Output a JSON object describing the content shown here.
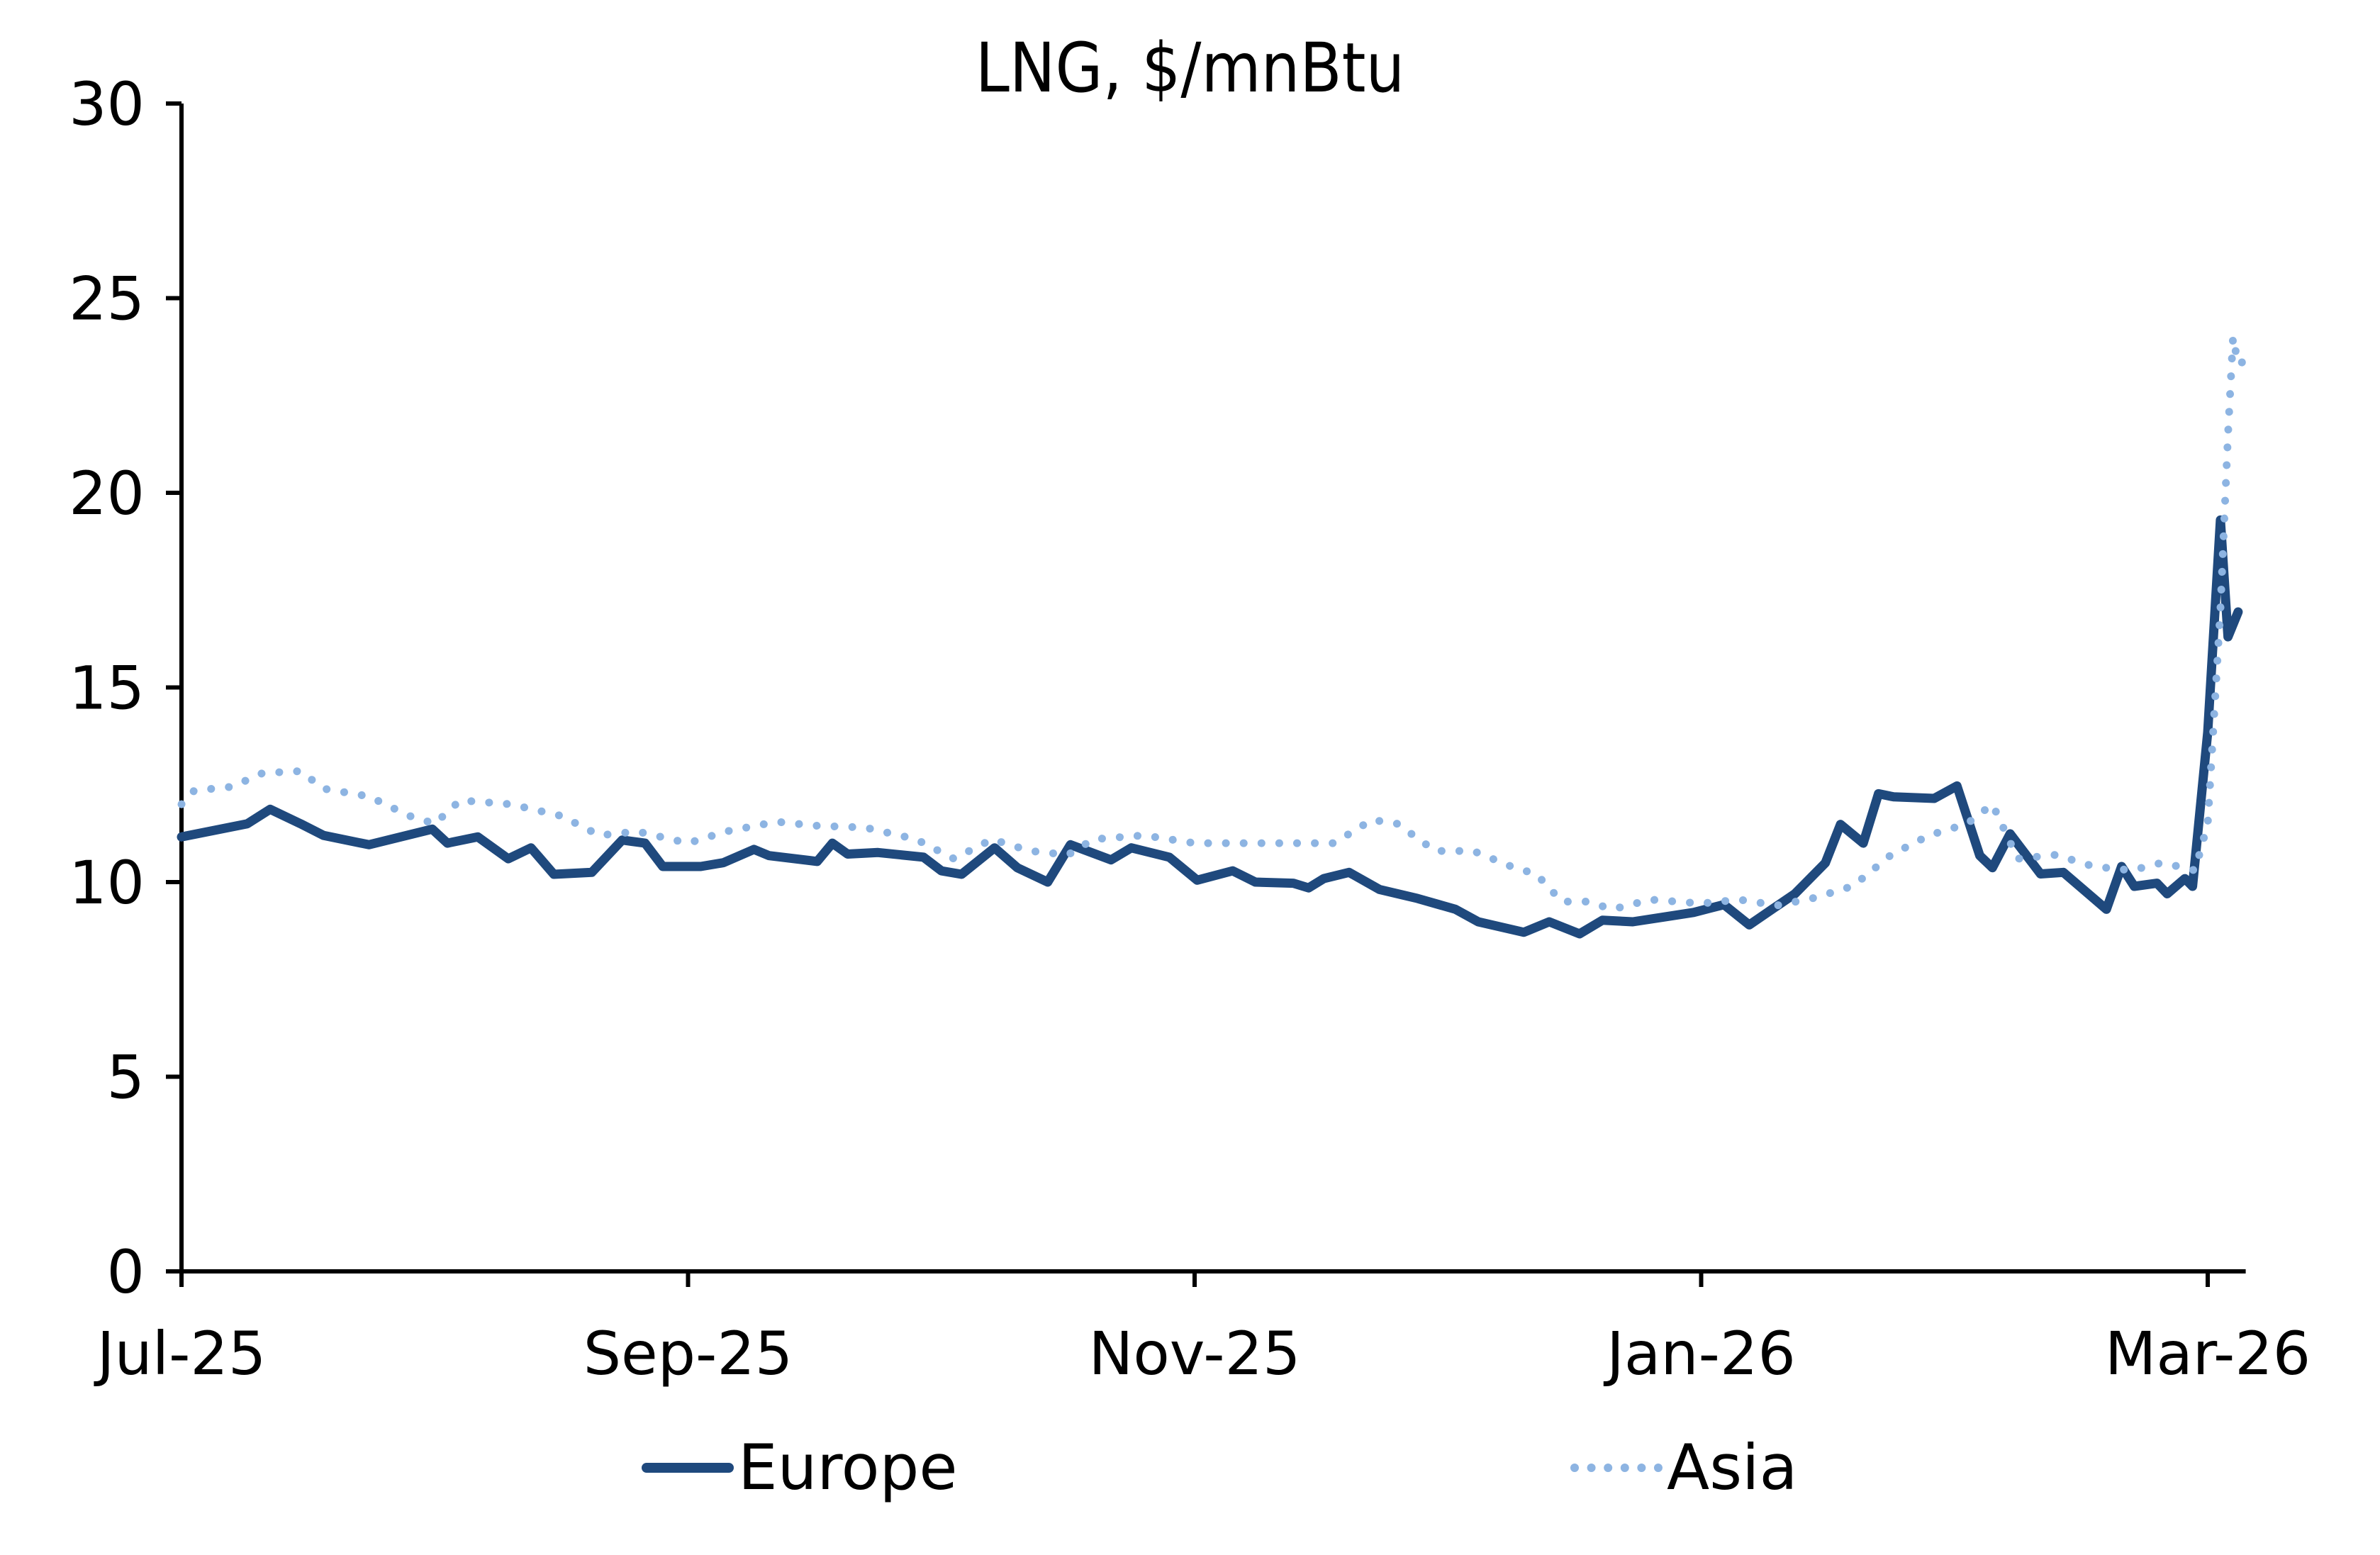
{
  "chart_data": {
    "type": "line",
    "title": "LNG, $/mnBtu",
    "xlabel": "",
    "ylabel": "",
    "ylim": [
      0,
      30
    ],
    "yticks": [
      0,
      5,
      10,
      15,
      20,
      25,
      30
    ],
    "xticks": [
      {
        "label": "Jul-25",
        "pos": 0
      },
      {
        "label": "Sep-25",
        "pos": 2
      },
      {
        "label": "Nov-25",
        "pos": 4
      },
      {
        "label": "Jan-26",
        "pos": 6
      },
      {
        "label": "Mar-26",
        "pos": 8
      }
    ],
    "xlim": [
      0,
      8.15
    ],
    "x_unit": "months since Jul-25",
    "grid": false,
    "legend_position": "bottom",
    "series": [
      {
        "name": "Europe",
        "style": "solid",
        "color": "#1F497D",
        "points": [
          [
            0,
            11.16
          ],
          [
            0.26,
            11.5
          ],
          [
            0.35,
            11.87
          ],
          [
            0.47,
            11.5
          ],
          [
            0.56,
            11.2
          ],
          [
            0.74,
            10.96
          ],
          [
            0.99,
            11.36
          ],
          [
            1.05,
            11.0
          ],
          [
            1.17,
            11.16
          ],
          [
            1.29,
            10.6
          ],
          [
            1.38,
            10.88
          ],
          [
            1.47,
            10.2
          ],
          [
            1.62,
            10.25
          ],
          [
            1.74,
            11.08
          ],
          [
            1.83,
            11.0
          ],
          [
            1.9,
            10.4
          ],
          [
            2.05,
            10.4
          ],
          [
            2.14,
            10.5
          ],
          [
            2.26,
            10.84
          ],
          [
            2.32,
            10.68
          ],
          [
            2.51,
            10.53
          ],
          [
            2.57,
            11.0
          ],
          [
            2.63,
            10.72
          ],
          [
            2.75,
            10.76
          ],
          [
            2.93,
            10.64
          ],
          [
            3.0,
            10.29
          ],
          [
            3.08,
            10.2
          ],
          [
            3.21,
            10.88
          ],
          [
            3.3,
            10.37
          ],
          [
            3.42,
            10.0
          ],
          [
            3.51,
            10.96
          ],
          [
            3.67,
            10.57
          ],
          [
            3.75,
            10.88
          ],
          [
            3.9,
            10.64
          ],
          [
            4.01,
            10.05
          ],
          [
            4.15,
            10.29
          ],
          [
            4.24,
            10.0
          ],
          [
            4.39,
            9.97
          ],
          [
            4.45,
            9.85
          ],
          [
            4.51,
            10.09
          ],
          [
            4.61,
            10.25
          ],
          [
            4.73,
            9.81
          ],
          [
            4.88,
            9.58
          ],
          [
            5.03,
            9.3
          ],
          [
            5.12,
            8.98
          ],
          [
            5.3,
            8.71
          ],
          [
            5.4,
            8.98
          ],
          [
            5.52,
            8.67
          ],
          [
            5.61,
            9.02
          ],
          [
            5.73,
            8.98
          ],
          [
            5.85,
            9.1
          ],
          [
            5.97,
            9.22
          ],
          [
            6.09,
            9.42
          ],
          [
            6.19,
            8.9
          ],
          [
            6.28,
            9.3
          ],
          [
            6.37,
            9.7
          ],
          [
            6.49,
            10.49
          ],
          [
            6.55,
            11.48
          ],
          [
            6.64,
            11.0
          ],
          [
            6.7,
            12.27
          ],
          [
            6.76,
            12.19
          ],
          [
            6.92,
            12.15
          ],
          [
            7.01,
            12.47
          ],
          [
            7.1,
            10.68
          ],
          [
            7.15,
            10.37
          ],
          [
            7.22,
            11.24
          ],
          [
            7.34,
            10.21
          ],
          [
            7.43,
            10.25
          ],
          [
            7.6,
            9.3
          ],
          [
            7.66,
            10.4
          ],
          [
            7.71,
            9.89
          ],
          [
            7.8,
            9.97
          ],
          [
            7.84,
            9.7
          ],
          [
            7.91,
            10.09
          ],
          [
            7.94,
            9.89
          ],
          [
            8.0,
            13.85
          ],
          [
            8.05,
            19.3
          ],
          [
            8.08,
            16.3
          ],
          [
            8.12,
            16.94
          ]
        ]
      },
      {
        "name": "Asia",
        "style": "dotted",
        "color": "#8DB4E2",
        "points": [
          [
            0,
            12.0
          ],
          [
            0.05,
            12.35
          ],
          [
            0.2,
            12.45
          ],
          [
            0.32,
            12.8
          ],
          [
            0.47,
            12.85
          ],
          [
            0.56,
            12.4
          ],
          [
            0.74,
            12.2
          ],
          [
            0.9,
            11.7
          ],
          [
            1.0,
            11.5
          ],
          [
            1.1,
            12.1
          ],
          [
            1.3,
            12.0
          ],
          [
            1.5,
            11.7
          ],
          [
            1.65,
            11.2
          ],
          [
            1.8,
            11.3
          ],
          [
            2.0,
            11.0
          ],
          [
            2.15,
            11.3
          ],
          [
            2.35,
            11.55
          ],
          [
            2.5,
            11.45
          ],
          [
            2.7,
            11.4
          ],
          [
            2.9,
            11.1
          ],
          [
            3.05,
            10.6
          ],
          [
            3.2,
            11.1
          ],
          [
            3.35,
            10.8
          ],
          [
            3.5,
            10.7
          ],
          [
            3.6,
            11.1
          ],
          [
            3.8,
            11.2
          ],
          [
            4.0,
            11.0
          ],
          [
            4.3,
            11.0
          ],
          [
            4.55,
            11.0
          ],
          [
            4.7,
            11.6
          ],
          [
            4.8,
            11.5
          ],
          [
            4.95,
            10.8
          ],
          [
            5.1,
            10.8
          ],
          [
            5.25,
            10.4
          ],
          [
            5.35,
            10.2
          ],
          [
            5.45,
            9.5
          ],
          [
            5.55,
            9.5
          ],
          [
            5.65,
            9.3
          ],
          [
            5.8,
            9.55
          ],
          [
            6.0,
            9.45
          ],
          [
            6.15,
            9.55
          ],
          [
            6.3,
            9.4
          ],
          [
            6.45,
            9.6
          ],
          [
            6.6,
            9.9
          ],
          [
            6.75,
            10.7
          ],
          [
            6.9,
            11.2
          ],
          [
            7.05,
            11.5
          ],
          [
            7.15,
            12.0
          ],
          [
            7.25,
            10.6
          ],
          [
            7.4,
            10.7
          ],
          [
            7.55,
            10.4
          ],
          [
            7.7,
            10.3
          ],
          [
            7.82,
            10.5
          ],
          [
            7.95,
            10.3
          ],
          [
            8.0,
            11.5
          ],
          [
            8.05,
            17.0
          ],
          [
            8.08,
            21.5
          ],
          [
            8.1,
            24.0
          ],
          [
            8.12,
            23.3
          ],
          [
            8.15,
            23.4
          ]
        ]
      }
    ]
  },
  "legend": {
    "europe_label": "Europe",
    "asia_label": "Asia"
  }
}
